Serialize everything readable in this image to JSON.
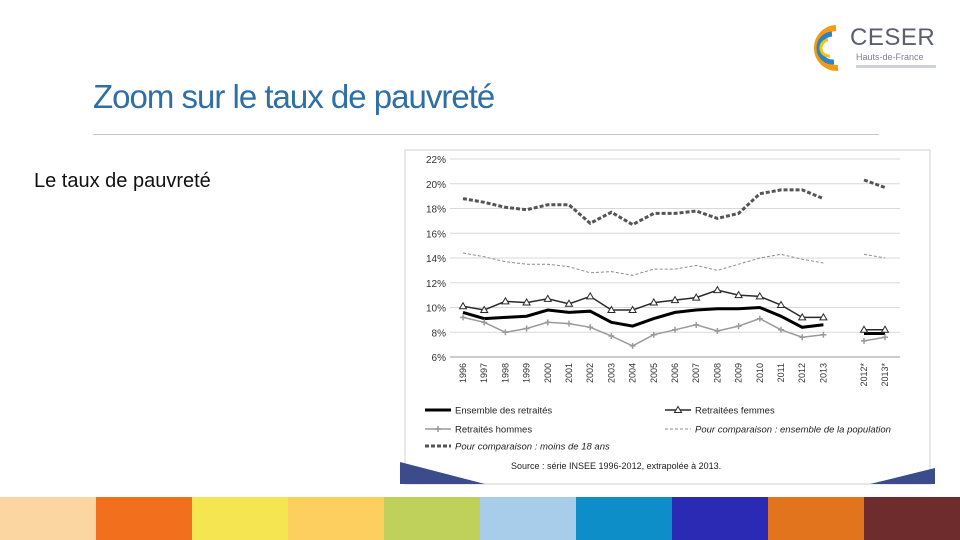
{
  "logo": {
    "name": "CESER",
    "subtitle": "Hauts-de-France"
  },
  "slide": {
    "title": "Zoom sur le taux de pauvreté",
    "subtitle": "Le taux de pauvreté"
  },
  "chart_data": {
    "type": "line",
    "categories": [
      "1996",
      "1997",
      "1998",
      "1999",
      "2000",
      "2001",
      "2002",
      "2003",
      "2004",
      "2005",
      "2006",
      "2007",
      "2008",
      "2009",
      "2010",
      "2011",
      "2012",
      "2013",
      "2012*",
      "2013*"
    ],
    "y_tick_labels": [
      "22%",
      "20%",
      "18%",
      "16%",
      "14%",
      "12%",
      "10%",
      "8%",
      "6%"
    ],
    "ylim": [
      6,
      22
    ],
    "grid": true,
    "series": [
      {
        "name": "Ensemble des retraités",
        "color": "#000000",
        "style": "thick",
        "marker": "none",
        "values": [
          9.6,
          9.1,
          9.2,
          9.3,
          9.8,
          9.6,
          9.7,
          8.8,
          8.5,
          9.1,
          9.6,
          9.8,
          9.9,
          9.9,
          10.0,
          9.3,
          8.4,
          8.6,
          7.9,
          7.9
        ]
      },
      {
        "name": "Retraitées femmes",
        "color": "#2a2a2a",
        "style": "solid",
        "marker": "triangle",
        "values": [
          10.1,
          9.8,
          10.5,
          10.4,
          10.7,
          10.3,
          10.9,
          9.8,
          9.8,
          10.4,
          10.6,
          10.8,
          11.4,
          11.0,
          10.9,
          10.2,
          9.2,
          9.2,
          8.2,
          8.2
        ]
      },
      {
        "name": "Retraités hommes",
        "color": "#9a9a9a",
        "style": "solid",
        "marker": "plus",
        "values": [
          9.2,
          8.8,
          8.0,
          8.3,
          8.8,
          8.7,
          8.4,
          7.7,
          6.9,
          7.8,
          8.2,
          8.6,
          8.1,
          8.5,
          9.1,
          8.2,
          7.6,
          7.8,
          7.3,
          7.6
        ]
      },
      {
        "name": "Pour comparaison : ensemble de la population",
        "color": "#8c8c8c",
        "style": "dashed-thin",
        "marker": "none",
        "values": [
          14.4,
          14.1,
          13.7,
          13.5,
          13.5,
          13.3,
          12.8,
          12.9,
          12.6,
          13.1,
          13.1,
          13.4,
          13.0,
          13.5,
          14.0,
          14.3,
          13.9,
          13.6,
          14.3,
          14.0
        ]
      },
      {
        "name": "Pour comparaison : moins de 18 ans",
        "color": "#555555",
        "style": "dashed-thick",
        "marker": "none",
        "values": [
          18.8,
          18.5,
          18.1,
          17.9,
          18.3,
          18.3,
          16.8,
          17.7,
          16.7,
          17.6,
          17.6,
          17.8,
          17.2,
          17.6,
          19.2,
          19.5,
          19.5,
          18.8,
          20.3,
          19.7
        ]
      }
    ],
    "source_note": "Source : série INSEE 1996-2012, extrapolée à 2013."
  },
  "footer_colors": [
    "#fbd6a0",
    "#f26f1e",
    "#f5e651",
    "#fccf5e",
    "#bfd15a",
    "#a7cdeb",
    "#0d8ec9",
    "#2a2ab5",
    "#e2741e",
    "#6f2c2c"
  ],
  "colors": {
    "title": "#2d6fa6",
    "logo_orange": "#f39c12",
    "logo_blue": "#2a82c7"
  }
}
